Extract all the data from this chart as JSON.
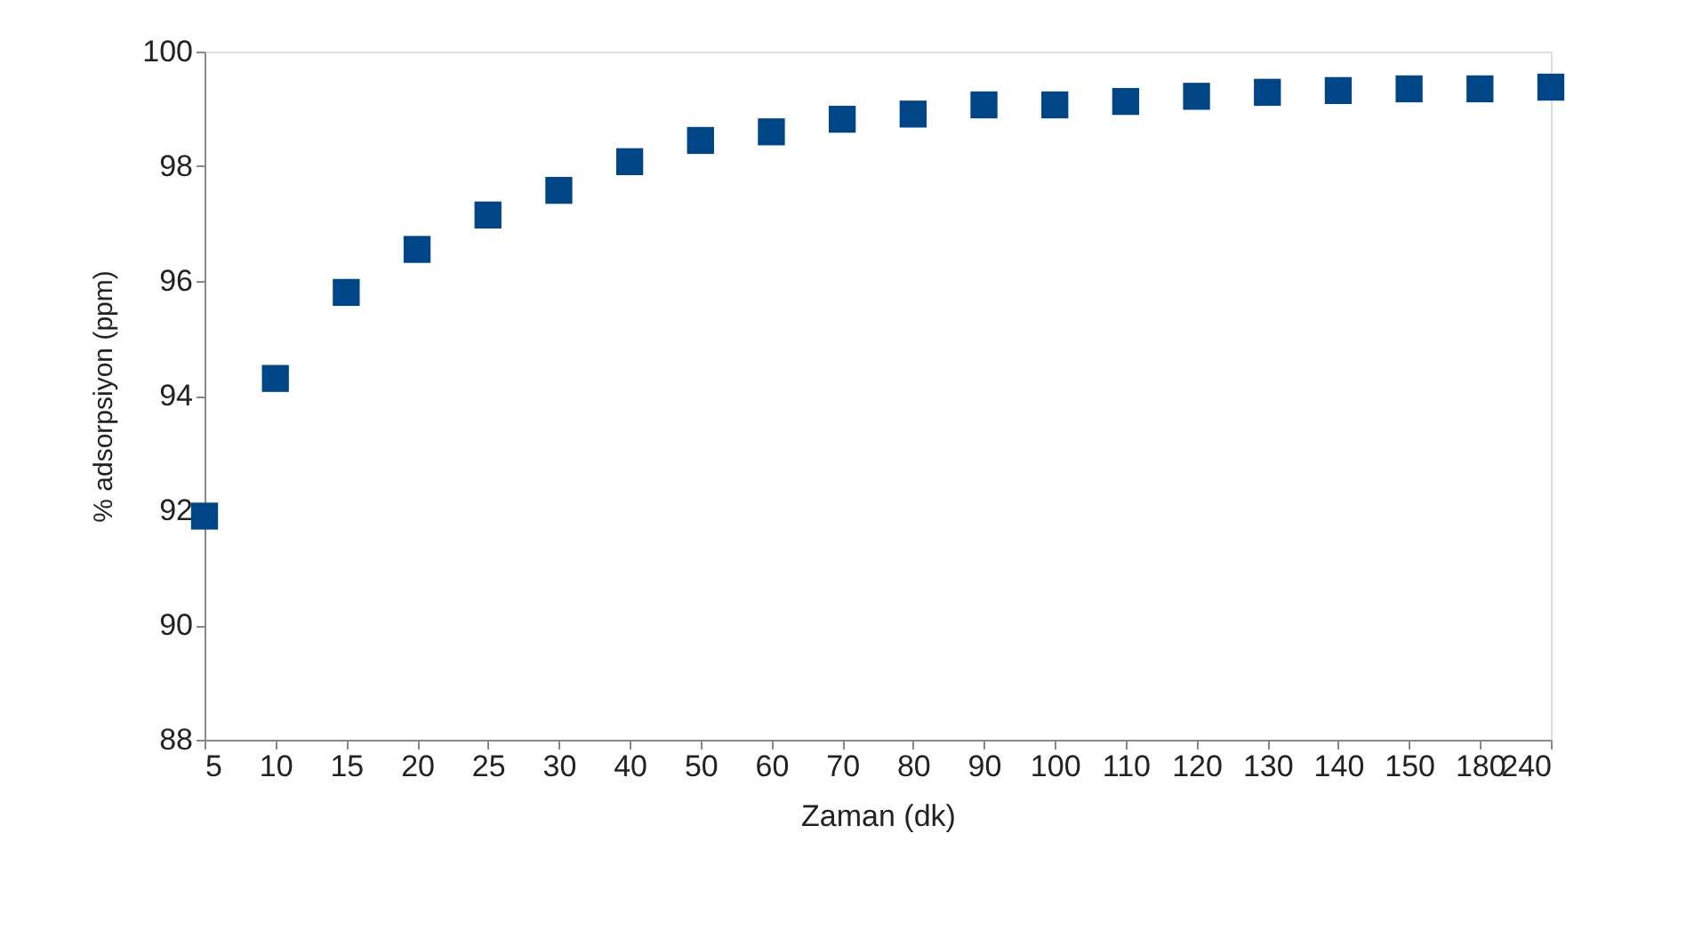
{
  "chart_data": {
    "type": "scatter",
    "xlabel": "Zaman (dk)",
    "ylabel": "% adsorpsiyon (ppm)",
    "categories": [
      "5",
      "10",
      "15",
      "20",
      "25",
      "30",
      "40",
      "50",
      "60",
      "70",
      "80",
      "90",
      "100",
      "110",
      "120",
      "130",
      "140",
      "150",
      "180",
      "240"
    ],
    "series": [
      {
        "color": "#004586",
        "values": [
          91.9,
          94.3,
          95.8,
          96.55,
          97.15,
          97.58,
          98.08,
          98.45,
          98.6,
          98.82,
          98.91,
          99.07,
          99.07,
          99.13,
          99.22,
          99.29,
          99.32,
          99.35,
          99.35,
          99.38
        ]
      }
    ],
    "ylim": [
      88,
      100
    ],
    "yticks": [
      88,
      90,
      92,
      94,
      96,
      98,
      100
    ],
    "grid": false,
    "marker": "square"
  }
}
